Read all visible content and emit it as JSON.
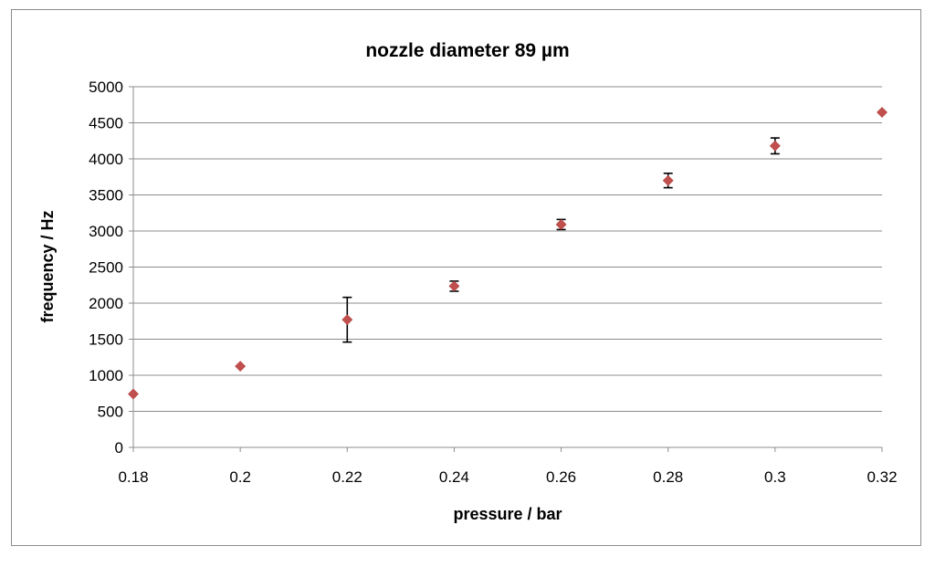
{
  "chart_data": {
    "type": "scatter",
    "title": "nozzle diameter 89 µm",
    "xlabel": "pressure / bar",
    "ylabel": "frequency / Hz",
    "xlim": [
      0.18,
      0.32
    ],
    "ylim": [
      0,
      5000
    ],
    "x_ticks": [
      0.18,
      0.2,
      0.22,
      0.24,
      0.26,
      0.28,
      0.3,
      0.32
    ],
    "x_tick_labels": [
      "0.18",
      "0.2",
      "0.22",
      "0.24",
      "0.26",
      "0.28",
      "0.3",
      "0.32"
    ],
    "y_ticks": [
      0,
      500,
      1000,
      1500,
      2000,
      2500,
      3000,
      3500,
      4000,
      4500,
      5000
    ],
    "y_tick_labels": [
      "0",
      "500",
      "1000",
      "1500",
      "2000",
      "2500",
      "3000",
      "3500",
      "4000",
      "4500",
      "5000"
    ],
    "grid": {
      "horizontal": true,
      "vertical": false
    },
    "legend": "none",
    "marker": "diamond",
    "marker_color": "#c0504d",
    "error_bar_color": "#000000",
    "series": [
      {
        "x": [
          0.18,
          0.2,
          0.22,
          0.24,
          0.26,
          0.28,
          0.3,
          0.32
        ],
        "y": [
          740,
          1125,
          1770,
          2235,
          3090,
          3700,
          4180,
          4645
        ],
        "y_error_low": [
          0,
          0,
          310,
          70,
          70,
          100,
          110,
          0
        ],
        "y_error_high": [
          0,
          0,
          310,
          70,
          70,
          100,
          110,
          0
        ]
      }
    ]
  }
}
